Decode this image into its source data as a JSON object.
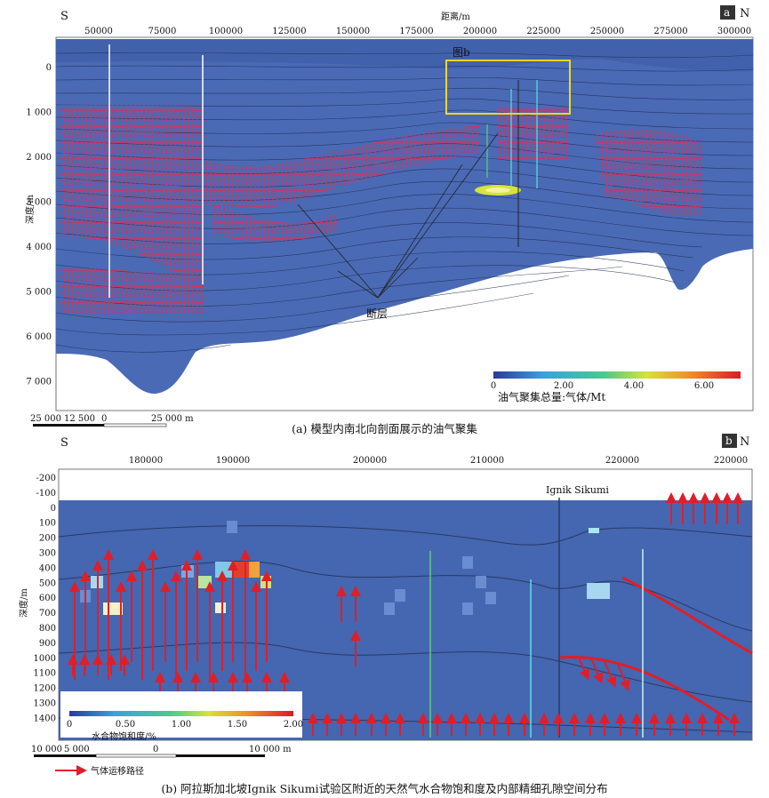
{
  "panel_a": {
    "tag": "a",
    "south": "S",
    "north": "N",
    "x_axis_title": "距离/m",
    "x_ticks": [
      "50000",
      "75000",
      "100000",
      "125000",
      "150000",
      "175000",
      "200000",
      "225000",
      "250000",
      "275000",
      "300000"
    ],
    "y_axis_title": "深度/m",
    "y_ticks": [
      "0",
      "1 000",
      "2 000",
      "3 000",
      "4 000",
      "5 000",
      "6 000",
      "7 000"
    ],
    "inset_label": "图b",
    "fault_label": "断层",
    "colorbar_ticks": [
      "0",
      "2.00",
      "4.00",
      "6.00"
    ],
    "colorbar_title": "油气聚集总量:气体/Mt",
    "scale_labels": [
      "25 000",
      "12 500",
      "0",
      "25 000 m"
    ],
    "caption": "(a) 模型内南北向剖面展示的油气聚集",
    "colors": {
      "background": "#4a6ab5",
      "lines": "#1a2440",
      "accumulation": "#e0204a",
      "inset_box": "#f2d71e"
    }
  },
  "panel_b": {
    "tag": "b",
    "south": "S",
    "north": "N",
    "x_ticks": [
      "180000",
      "190000",
      "200000",
      "210000",
      "220000",
      "220000"
    ],
    "y_axis_title": "深度/m",
    "y_ticks": [
      "-200",
      "-100",
      "0",
      "100",
      "200",
      "300",
      "400",
      "500",
      "600",
      "700",
      "800",
      "900",
      "1000",
      "1100",
      "1200",
      "1300",
      "1400"
    ],
    "well_label": "Ignik Sikumi",
    "colorbar_ticks": [
      "0",
      "0.50",
      "1.00",
      "1.50",
      "2.00"
    ],
    "colorbar_title": "水合物饱和度/%",
    "scale_labels": [
      "10 000",
      "5 000",
      "0",
      "10 000 m"
    ],
    "legend_label": "气体运移路径",
    "caption": "(b) 阿拉斯加北坡Ignik Sikumi试验区附近的天然气水合物饱和度及内部精细孔隙空间分布",
    "colors": {
      "background": "#4566b0",
      "arrows": "#e01e28",
      "layers": "#2a3a66"
    }
  }
}
